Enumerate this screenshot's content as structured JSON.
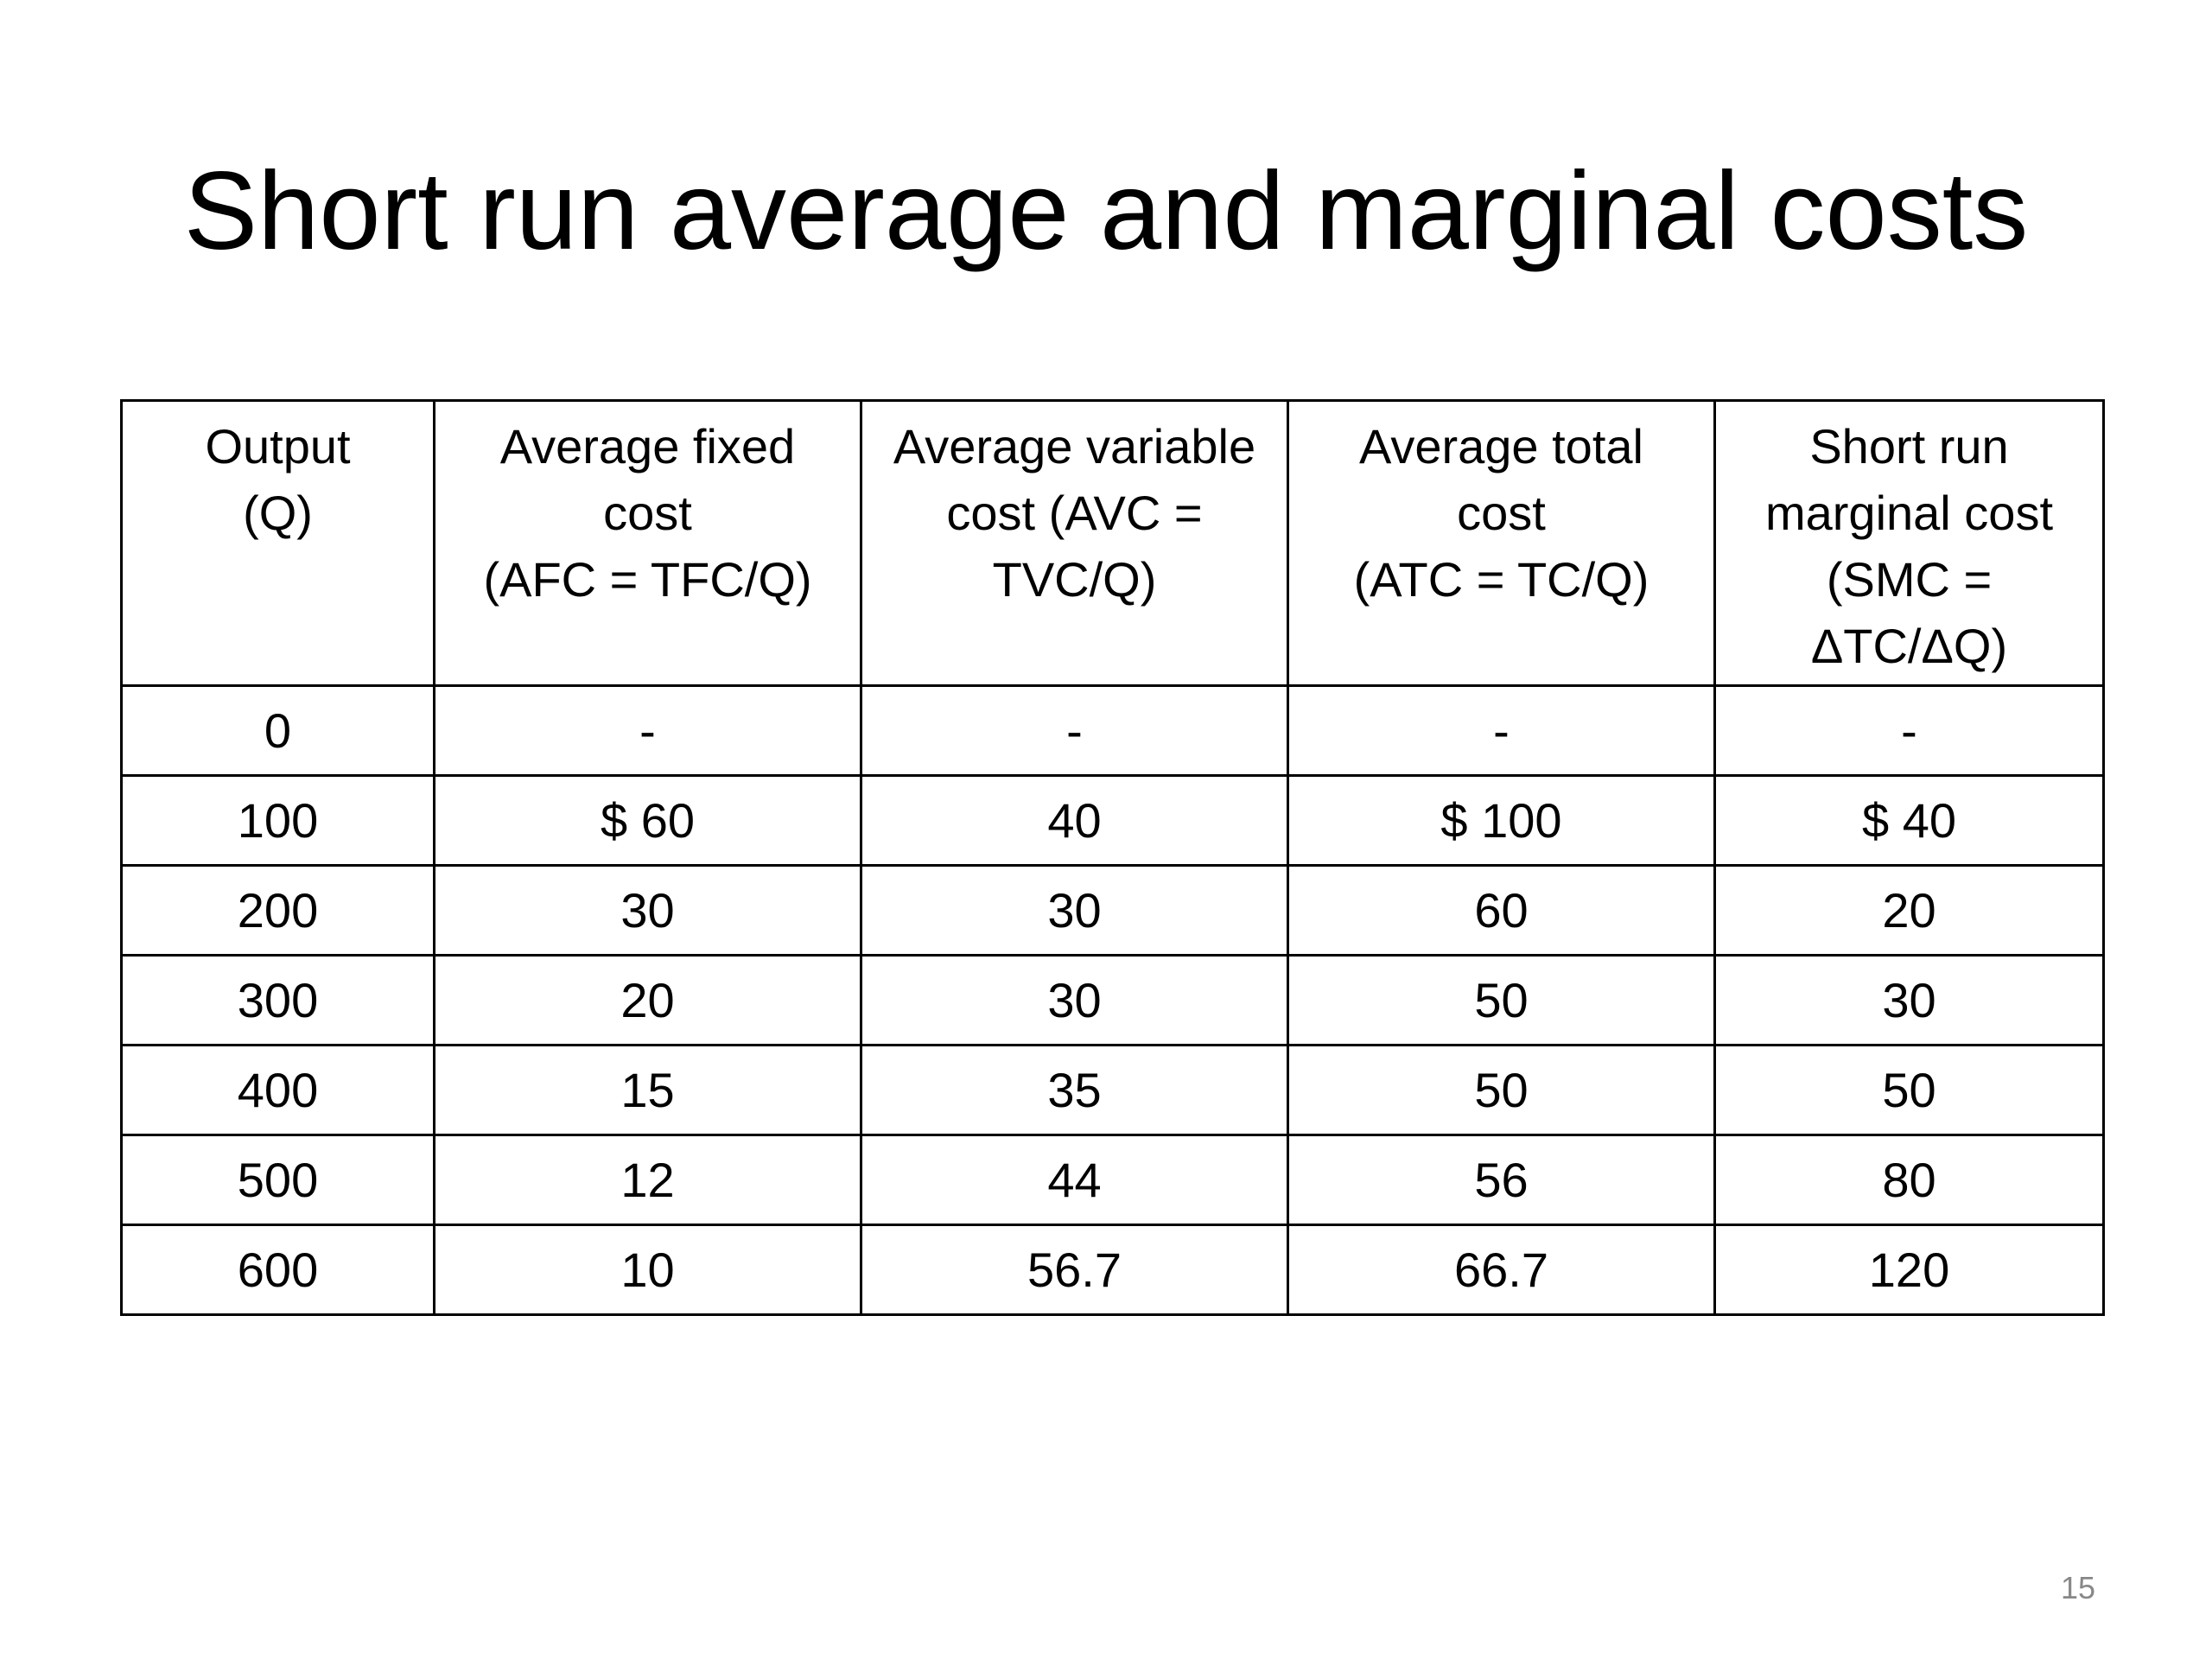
{
  "slide": {
    "title": "Short run average and marginal costs",
    "page_number": "15"
  },
  "table": {
    "headers": [
      {
        "lines": [
          "Output",
          "(Q)"
        ]
      },
      {
        "lines": [
          "Average fixed",
          "cost",
          "(AFC = TFC/Q)"
        ]
      },
      {
        "lines": [
          "Average variable",
          "cost (AVC =",
          "TVC/Q)"
        ]
      },
      {
        "lines": [
          "Average total",
          "cost",
          "(ATC = TC/Q)"
        ]
      },
      {
        "lines": [
          "Short run",
          "marginal cost",
          "(SMC =",
          "ΔTC/ΔQ)"
        ]
      }
    ],
    "rows": [
      [
        "0",
        "-",
        "-",
        "-",
        "-"
      ],
      [
        "100",
        "$ 60",
        "40",
        "$ 100",
        "$ 40"
      ],
      [
        "200",
        "30",
        "30",
        "60",
        "20"
      ],
      [
        "300",
        "20",
        "30",
        "50",
        "30"
      ],
      [
        "400",
        "15",
        "35",
        "50",
        "50"
      ],
      [
        "500",
        "12",
        "44",
        "56",
        "80"
      ],
      [
        "600",
        "10",
        "56.7",
        "66.7",
        "120"
      ]
    ]
  }
}
